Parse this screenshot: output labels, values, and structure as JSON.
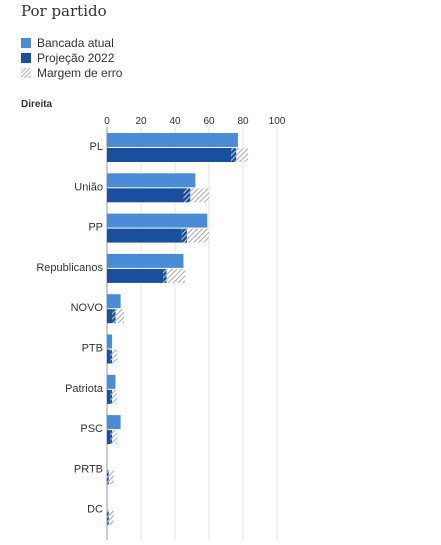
{
  "title": "Por partido",
  "legend": [
    {
      "label": "Bancada atual",
      "color": "#4a8dd6",
      "kind": "solid"
    },
    {
      "label": "Projeção 2022",
      "color": "#1a4f9e",
      "kind": "solid"
    },
    {
      "label": "Margem de erro",
      "color": "#999999",
      "kind": "hatch"
    }
  ],
  "section_label": "Direita",
  "chart_data": {
    "type": "bar",
    "orientation": "horizontal",
    "title": "",
    "xlim": [
      0,
      100
    ],
    "xticks": [
      0,
      20,
      40,
      60,
      80,
      100
    ],
    "grid": true,
    "categories": [
      "PL",
      "União",
      "PP",
      "Republicanos",
      "NOVO",
      "PTB",
      "Patriota",
      "PSC",
      "PRTB",
      "DC"
    ],
    "series": [
      {
        "name": "Bancada atual",
        "color": "#4a8dd6",
        "values": [
          77,
          52,
          59,
          45,
          8,
          3,
          5,
          8,
          0,
          0
        ]
      },
      {
        "name": "Projeção 2022",
        "color": "#1a4f9e",
        "values": [
          76,
          49,
          47,
          35,
          5,
          3,
          3,
          3,
          1,
          1
        ],
        "error_low": [
          73,
          45,
          44,
          33,
          3,
          2,
          2,
          2,
          0,
          0
        ],
        "error_high": [
          83,
          60,
          60,
          46,
          10,
          6,
          6,
          6,
          4,
          4
        ]
      }
    ]
  }
}
